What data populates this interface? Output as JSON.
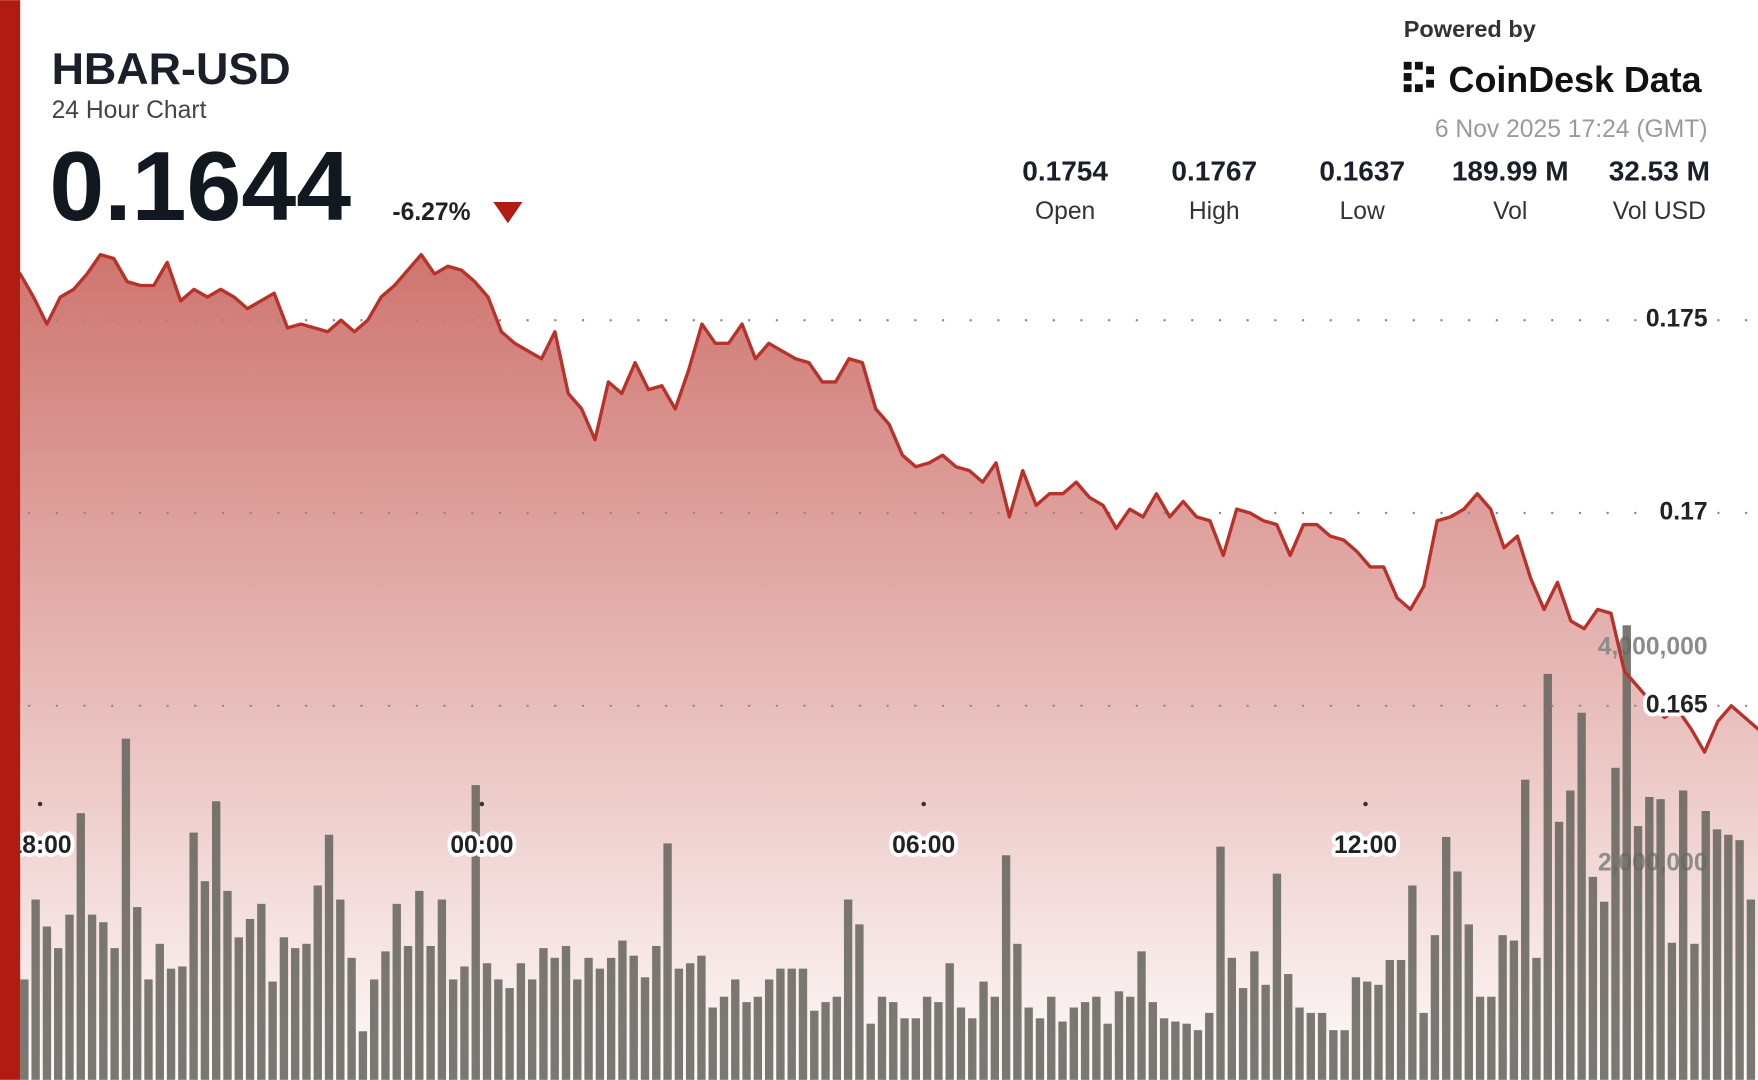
{
  "header": {
    "title": "HBAR-USD",
    "subtitle": "24 Hour Chart",
    "price": "0.1644",
    "change": "-6.27%",
    "powered_by": "Powered by",
    "brand": "CoinDesk Data",
    "timestamp": "6 Nov 2025 17:24 (GMT)",
    "stats": [
      {
        "value": "0.1754",
        "label": "Open"
      },
      {
        "value": "0.1767",
        "label": "High"
      },
      {
        "value": "0.1637",
        "label": "Low"
      },
      {
        "value": "189.99 M",
        "label": "Vol"
      },
      {
        "value": "32.53 M",
        "label": "Vol USD"
      }
    ]
  },
  "chart_data": {
    "type": "line",
    "xlim": [
      -6.27,
      17.33
    ],
    "xticks": [
      {
        "value": -6,
        "label": "18:00"
      },
      {
        "value": 0,
        "label": "00:00"
      },
      {
        "value": 6,
        "label": "06:00"
      },
      {
        "value": 12,
        "label": "12:00"
      }
    ],
    "ylim": [
      0.1553,
      0.1833
    ],
    "yticks": [
      0.165,
      0.17,
      0.175
    ],
    "y2lim": [
      0,
      10000000
    ],
    "y2ticks": [
      {
        "value": 2000000,
        "label": "2,000,000"
      },
      {
        "value": 4000000,
        "label": "4,000,000"
      }
    ],
    "grid": true,
    "series": [
      {
        "color": "#b8322a",
        "values": [
          0.1762,
          0.1756,
          0.1749,
          0.1756,
          0.1758,
          0.1762,
          0.1767,
          0.1766,
          0.176,
          0.1759,
          0.1759,
          0.1765,
          0.1755,
          0.1758,
          0.1756,
          0.1758,
          0.1756,
          0.1753,
          0.1755,
          0.1757,
          0.1748,
          0.1749,
          0.1748,
          0.1747,
          0.175,
          0.1747,
          0.175,
          0.1756,
          0.1759,
          0.1763,
          0.1767,
          0.1762,
          0.1764,
          0.1763,
          0.176,
          0.1756,
          0.1747,
          0.1744,
          0.1742,
          0.174,
          0.1747,
          0.1731,
          0.1727,
          0.1719,
          0.1734,
          0.1731,
          0.1739,
          0.1732,
          0.1733,
          0.1727,
          0.1737,
          0.1749,
          0.1744,
          0.1744,
          0.1749,
          0.174,
          0.1744,
          0.1742,
          0.174,
          0.1739,
          0.1734,
          0.1734,
          0.174,
          0.1739,
          0.1727,
          0.1723,
          0.1715,
          0.1712,
          0.1713,
          0.1715,
          0.1712,
          0.1711,
          0.1708,
          0.1713,
          0.1699,
          0.1711,
          0.1702,
          0.1705,
          0.1705,
          0.1708,
          0.1704,
          0.1702,
          0.1696,
          0.1701,
          0.1699,
          0.1705,
          0.1699,
          0.1703,
          0.1699,
          0.1698,
          0.1689,
          0.1701,
          0.17,
          0.1698,
          0.1697,
          0.1689,
          0.1697,
          0.1697,
          0.1694,
          0.1693,
          0.169,
          0.1686,
          0.1686,
          0.1678,
          0.1675,
          0.1681,
          0.1698,
          0.1699,
          0.1701,
          0.1705,
          0.1701,
          0.1691,
          0.1694,
          0.1683,
          0.1675,
          0.1682,
          0.1672,
          0.167,
          0.1675,
          0.1674,
          0.1659,
          0.1655,
          0.1651,
          0.1647,
          0.1649,
          0.1644,
          0.1638,
          0.1646,
          0.165,
          0.1647,
          0.1644
        ]
      },
      {
        "type": "bar",
        "axis": "y2",
        "color": "#66665e",
        "values": [
          930000,
          1670000,
          1420000,
          1220000,
          1530000,
          2470000,
          1530000,
          1460000,
          1220000,
          3160000,
          1600000,
          930000,
          1260000,
          1030000,
          1050000,
          2290000,
          1840000,
          2580000,
          1750000,
          1320000,
          1490000,
          1630000,
          910000,
          1320000,
          1220000,
          1260000,
          1800000,
          2270000,
          1670000,
          1130000,
          450000,
          930000,
          1190000,
          1630000,
          1240000,
          1750000,
          1240000,
          1670000,
          930000,
          1050000,
          2730000,
          1080000,
          930000,
          850000,
          1080000,
          930000,
          1220000,
          1130000,
          1240000,
          930000,
          1130000,
          1030000,
          1130000,
          1290000,
          1150000,
          950000,
          1240000,
          2190000,
          1030000,
          1080000,
          1150000,
          670000,
          770000,
          930000,
          720000,
          770000,
          930000,
          1030000,
          1030000,
          1030000,
          640000,
          720000,
          770000,
          1670000,
          1440000,
          520000,
          770000,
          720000,
          570000,
          570000,
          770000,
          720000,
          1080000,
          670000,
          570000,
          910000,
          770000,
          2080000,
          1260000,
          670000,
          570000,
          770000,
          540000,
          670000,
          720000,
          770000,
          520000,
          820000,
          770000,
          1190000,
          720000,
          570000,
          540000,
          520000,
          460000,
          620000,
          2160000,
          1130000,
          850000,
          1190000,
          880000,
          1910000,
          980000,
          670000,
          620000,
          620000,
          460000,
          460000,
          950000,
          910000,
          880000,
          1110000,
          1110000,
          1800000,
          620000,
          1340000,
          2250000,
          1930000,
          1440000,
          770000,
          770000,
          1340000,
          1290000,
          2780000,
          1130000,
          3760000,
          2390000,
          2680000,
          3400000,
          1880000,
          1650000,
          2890000,
          4210000,
          2350000,
          2620000,
          2600000,
          1270000,
          2680000,
          1260000,
          2490000,
          2320000,
          2270000,
          2220000,
          1670000
        ]
      }
    ]
  }
}
